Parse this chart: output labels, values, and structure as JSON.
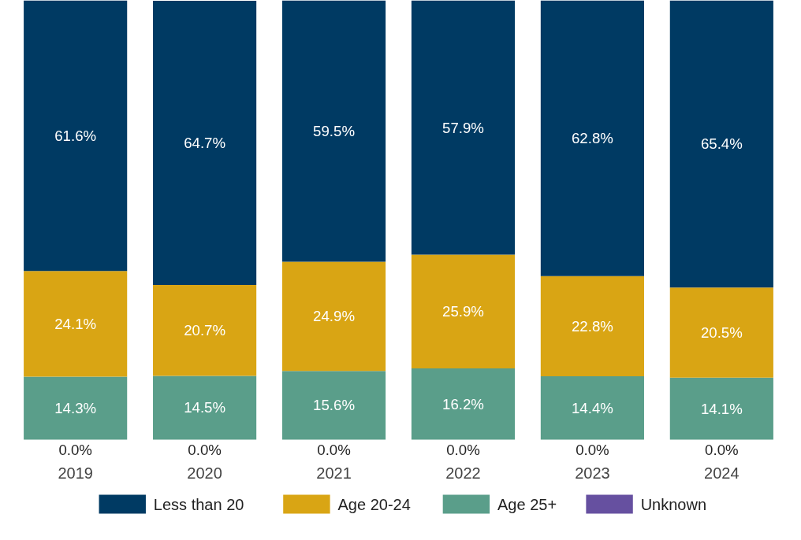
{
  "chart_data": {
    "type": "bar",
    "stacked": true,
    "categories": [
      "2019",
      "2020",
      "2021",
      "2022",
      "2023",
      "2024"
    ],
    "legend": "bottom",
    "series": [
      {
        "name": "Unknown",
        "color": "#6650a0",
        "values": [
          0.0,
          0.0,
          0.0,
          0.0,
          0.0,
          0.0
        ],
        "value_labels": [
          "0.0%",
          "0.0%",
          "0.0%",
          "0.0%",
          "0.0%",
          "0.0%"
        ]
      },
      {
        "name": "Age 25+",
        "color": "#5a9e8a",
        "values": [
          14.3,
          14.5,
          15.6,
          16.2,
          14.4,
          14.1
        ],
        "value_labels": [
          "14.3%",
          "14.5%",
          "15.6%",
          "16.2%",
          "14.4%",
          "14.1%"
        ]
      },
      {
        "name": "Age 20-24",
        "color": "#d9a514",
        "values": [
          24.1,
          20.7,
          24.9,
          25.9,
          22.8,
          20.5
        ],
        "value_labels": [
          "24.1%",
          "20.7%",
          "24.9%",
          "25.9%",
          "22.8%",
          "20.5%"
        ]
      },
      {
        "name": "Less than 20",
        "color": "#003a63",
        "values": [
          61.6,
          64.7,
          59.5,
          57.9,
          62.8,
          65.4
        ],
        "value_labels": [
          "61.6%",
          "64.7%",
          "59.5%",
          "57.9%",
          "62.8%",
          "65.4%"
        ]
      }
    ]
  }
}
